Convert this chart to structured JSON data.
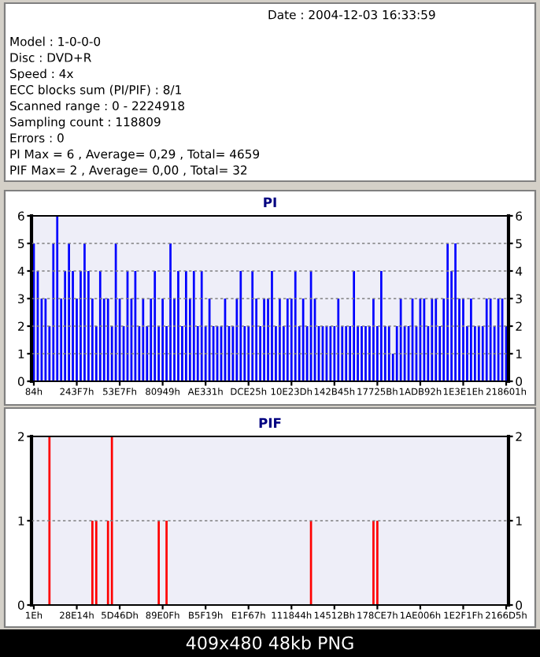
{
  "chart_data": [
    {
      "type": "other",
      "annotations": [
        "Date : 2004-12-03 16:33:59",
        "Model : 1-0-0-0",
        "Disc : DVD+R",
        "Speed : 4x",
        "ECC blocks sum (PI/PIF) : 8/1",
        "Scanned range : 0 - 2224918",
        "Sampling count : 118809",
        "Errors : 0",
        "PI Max = 6 , Average= 0,29 , Total= 4659",
        "PIF Max= 2 , Average= 0,00 , Total= 32"
      ]
    },
    {
      "type": "bar",
      "title": "PI",
      "color": "#0000ff",
      "grid": "y",
      "categories": [
        "84h",
        null,
        null,
        null,
        null,
        null,
        null,
        null,
        null,
        null,
        null,
        "243F7h",
        null,
        null,
        null,
        null,
        null,
        null,
        null,
        null,
        null,
        null,
        "53E7Fh",
        null,
        null,
        null,
        null,
        null,
        null,
        null,
        null,
        null,
        null,
        "80949h",
        null,
        null,
        null,
        null,
        null,
        null,
        null,
        null,
        null,
        null,
        "AE331h",
        null,
        null,
        null,
        null,
        null,
        null,
        null,
        null,
        null,
        null,
        "DCE25h",
        null,
        null,
        null,
        null,
        null,
        null,
        null,
        null,
        null,
        null,
        "10E23Dh",
        null,
        null,
        null,
        null,
        null,
        null,
        null,
        null,
        null,
        null,
        "142B45h",
        null,
        null,
        null,
        null,
        null,
        null,
        null,
        null,
        null,
        null,
        "17725Bh",
        null,
        null,
        null,
        null,
        null,
        null,
        null,
        null,
        null,
        null,
        "1ADB92h",
        null,
        null,
        null,
        null,
        null,
        null,
        null,
        null,
        null,
        null,
        "1E3E1Eh",
        null,
        null,
        null,
        null,
        null,
        null,
        null,
        null,
        null,
        null,
        "218601h"
      ],
      "values": [
        5,
        4,
        3,
        3,
        2,
        5,
        6,
        3,
        4,
        5,
        4,
        3,
        4,
        5,
        4,
        3,
        2,
        4,
        3,
        3,
        2,
        5,
        3,
        2,
        4,
        3,
        4,
        2,
        3,
        2,
        3,
        4,
        2,
        3,
        2,
        5,
        3,
        4,
        2,
        4,
        3,
        4,
        2,
        4,
        2,
        3,
        2,
        2,
        2,
        3,
        2,
        2,
        3,
        4,
        2,
        2,
        4,
        3,
        2,
        3,
        3,
        4,
        2,
        3,
        2,
        3,
        3,
        4,
        2,
        3,
        2,
        4,
        3,
        2,
        2,
        2,
        2,
        2,
        3,
        2,
        2,
        2,
        4,
        2,
        2,
        2,
        2,
        3,
        2,
        4,
        2,
        2,
        1,
        2,
        3,
        2,
        2,
        3,
        2,
        3,
        3,
        2,
        3,
        3,
        2,
        3,
        5,
        4,
        5,
        3,
        3,
        2,
        3,
        2,
        2,
        2,
        3,
        3,
        2,
        3,
        3,
        2
      ],
      "ylim": [
        0,
        6
      ],
      "yticks": [
        0,
        1,
        2,
        3,
        4,
        5,
        6
      ],
      "y2lim": [
        0,
        6
      ],
      "y2ticks": [
        0,
        1,
        2,
        3,
        4,
        5,
        6
      ]
    },
    {
      "type": "bar",
      "title": "PIF",
      "color": "#ff0000",
      "grid": "y",
      "categories": [
        "1Eh",
        null,
        null,
        null,
        null,
        null,
        null,
        null,
        null,
        null,
        null,
        "28E14h",
        null,
        null,
        null,
        null,
        null,
        null,
        null,
        null,
        null,
        null,
        "5D46Dh",
        null,
        null,
        null,
        null,
        null,
        null,
        null,
        null,
        null,
        null,
        "89E0Fh",
        null,
        null,
        null,
        null,
        null,
        null,
        null,
        null,
        null,
        null,
        "B5F19h",
        null,
        null,
        null,
        null,
        null,
        null,
        null,
        null,
        null,
        null,
        "E1F67h",
        null,
        null,
        null,
        null,
        null,
        null,
        null,
        null,
        null,
        null,
        "111844h",
        null,
        null,
        null,
        null,
        null,
        null,
        null,
        null,
        null,
        null,
        "14512Bh",
        null,
        null,
        null,
        null,
        null,
        null,
        null,
        null,
        null,
        null,
        "178CE7h",
        null,
        null,
        null,
        null,
        null,
        null,
        null,
        null,
        null,
        null,
        "1AE006h",
        null,
        null,
        null,
        null,
        null,
        null,
        null,
        null,
        null,
        null,
        "1E2F1Fh",
        null,
        null,
        null,
        null,
        null,
        null,
        null,
        null,
        null,
        null,
        "2166D5h"
      ],
      "values": [
        0,
        0,
        0,
        0,
        2,
        0,
        0,
        0,
        0,
        0,
        0,
        0,
        0,
        0,
        0,
        1,
        1,
        0,
        0,
        1,
        2,
        0,
        0,
        0,
        0,
        0,
        0,
        0,
        0,
        0,
        0,
        0,
        1,
        0,
        1,
        0,
        0,
        0,
        0,
        0,
        0,
        0,
        0,
        0,
        0,
        0,
        0,
        0,
        0,
        0,
        0,
        0,
        0,
        0,
        0,
        0,
        0,
        0,
        0,
        0,
        0,
        0,
        0,
        0,
        0,
        0,
        0,
        0,
        0,
        0,
        0,
        1,
        0,
        0,
        0,
        0,
        0,
        0,
        0,
        0,
        0,
        0,
        0,
        0,
        0,
        0,
        0,
        1,
        1,
        0,
        0,
        0,
        0,
        0,
        0,
        0,
        0,
        0,
        0,
        0,
        0,
        0,
        0,
        0,
        0,
        0,
        0,
        0,
        0,
        0,
        0,
        0,
        0,
        0,
        0,
        0,
        0,
        0,
        0,
        0,
        0,
        0
      ],
      "ylim": [
        0,
        2
      ],
      "yticks": [
        0,
        1,
        2
      ],
      "y2lim": [
        0,
        2
      ],
      "y2ticks": [
        0,
        1,
        2
      ],
      "annotations": [
        "409x480 48kb PNG"
      ]
    }
  ]
}
